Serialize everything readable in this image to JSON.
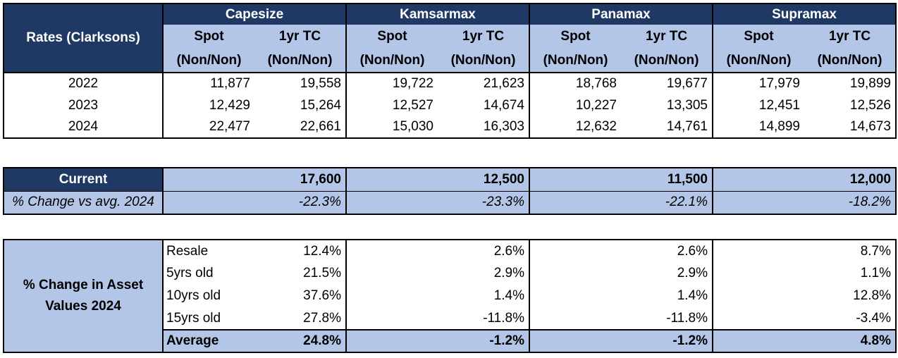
{
  "rates": {
    "title": "Rates (Clarksons)",
    "vessels": [
      "Capesize",
      "Kamsarmax",
      "Panamax",
      "Supramax"
    ],
    "sub_a": [
      "Spot",
      "1yr TC"
    ],
    "sub_b": [
      "(Non/Non)",
      "(Non/Non)"
    ],
    "rows": [
      {
        "year": "2022",
        "values": [
          "11,877",
          "19,558",
          "19,722",
          "21,623",
          "18,768",
          "19,677",
          "17,979",
          "19,899"
        ]
      },
      {
        "year": "2023",
        "values": [
          "12,429",
          "15,264",
          "12,527",
          "14,674",
          "10,227",
          "13,305",
          "12,451",
          "12,526"
        ]
      },
      {
        "year": "2024",
        "values": [
          "22,477",
          "22,661",
          "15,030",
          "16,303",
          "12,632",
          "14,761",
          "14,899",
          "14,673"
        ]
      }
    ]
  },
  "current": {
    "label": "Current",
    "values": [
      "17,600",
      "12,500",
      "11,500",
      "12,000"
    ],
    "change_label": "% Change vs avg. 2024",
    "changes": [
      "-22.3%",
      "-23.3%",
      "-22.1%",
      "-18.2%"
    ]
  },
  "assets": {
    "title_line1": "% Change in Asset",
    "title_line2": "Values 2024",
    "rows": [
      {
        "label": "Resale",
        "values": [
          "12.4%",
          "2.6%",
          "2.6%",
          "8.7%"
        ]
      },
      {
        "label": "5yrs old",
        "values": [
          "21.5%",
          "2.9%",
          "2.9%",
          "1.1%"
        ]
      },
      {
        "label": "10yrs old",
        "values": [
          "37.6%",
          "1.4%",
          "1.4%",
          "12.8%"
        ]
      },
      {
        "label": "15yrs old",
        "values": [
          "27.8%",
          "-11.8%",
          "-11.8%",
          "-3.4%"
        ]
      }
    ],
    "average": {
      "label": "Average",
      "values": [
        "24.8%",
        "-1.2%",
        "-1.2%",
        "4.8%"
      ]
    }
  },
  "colors": {
    "header": "#1f3864",
    "light": "#b4c6e7",
    "border": "#000000"
  }
}
